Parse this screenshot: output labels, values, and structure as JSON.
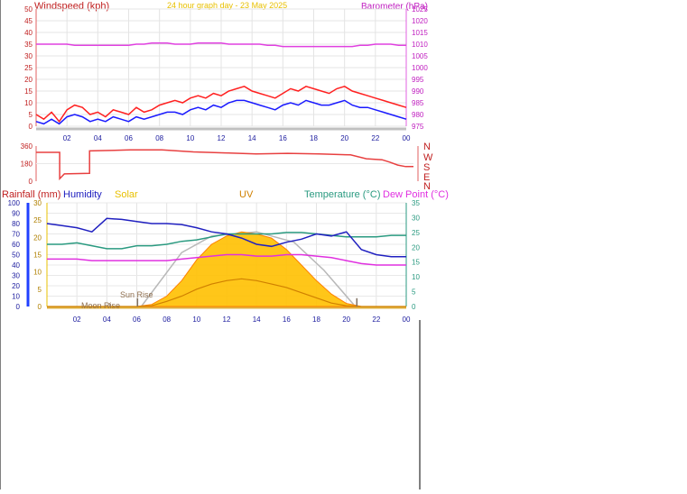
{
  "header": {
    "left_title": "Windspeed (kph)",
    "center_title": "24 hour graph day - 23 May 2025",
    "right_title": "Barometer (hPa)"
  },
  "legend": {
    "rainfall": "Rainfall (mm)",
    "humidity": "Humidity",
    "solar": "Solar",
    "uv": "UV",
    "temperature": "Temperature (°C)",
    "dew_point": "Dew Point (°C)"
  },
  "annotations": {
    "sun_rise": "Sun Rise",
    "moon_rise": "Moon Rise"
  },
  "compass": [
    "N",
    "W",
    "S",
    "E",
    "N"
  ],
  "colors": {
    "wind_gust": "#ff2020",
    "wind_avg": "#1a1aff",
    "barometer": "#e040e0",
    "direction": "#e84040",
    "humidity": "#2020c0",
    "temperature": "#2a9a80",
    "dew_point": "#e030e0",
    "solar_fill": "#ffc000",
    "solar_edge": "#ff8000",
    "uv": "#d08000",
    "rain_axis": "#2040ff",
    "axis_grey": "#c0c0c0",
    "x_label": "#2020a0",
    "title": "#c02020",
    "center_title": "#e8c000"
  },
  "chart_data": [
    {
      "type": "line",
      "title": "24 hour graph day - 23 May 2025",
      "ylabel": "Windspeed (kph)",
      "y2label": "Barometer (hPa)",
      "ylim": [
        0,
        50
      ],
      "y2lim": [
        975,
        1025
      ],
      "x_ticks": [
        "02",
        "04",
        "06",
        "08",
        "10",
        "12",
        "14",
        "16",
        "18",
        "20",
        "22",
        "00"
      ],
      "y_ticks": [
        0,
        5,
        10,
        15,
        20,
        25,
        30,
        35,
        40,
        45,
        50
      ],
      "y2_ticks": [
        975,
        980,
        985,
        990,
        995,
        1000,
        1005,
        1010,
        1015,
        1020,
        1025
      ],
      "x_hours": [
        0,
        0.5,
        1,
        1.5,
        2,
        2.5,
        3,
        3.5,
        4,
        4.5,
        5,
        5.5,
        6,
        6.5,
        7,
        7.5,
        8,
        8.5,
        9,
        9.5,
        10,
        10.5,
        11,
        11.5,
        12,
        12.5,
        13,
        13.5,
        14,
        14.5,
        15,
        15.5,
        16,
        16.5,
        17,
        17.5,
        18,
        18.5,
        19,
        19.5,
        20,
        20.5,
        21,
        21.5,
        22,
        22.5,
        23,
        23.5,
        24
      ],
      "series": [
        {
          "name": "Gust",
          "axis": "left",
          "values": [
            5,
            3,
            6,
            2,
            7,
            9,
            8,
            5,
            6,
            4,
            7,
            6,
            5,
            8,
            6,
            7,
            9,
            10,
            11,
            10,
            12,
            13,
            12,
            14,
            13,
            15,
            16,
            17,
            15,
            14,
            13,
            12,
            14,
            16,
            15,
            17,
            16,
            15,
            14,
            16,
            17,
            15,
            14,
            13,
            12,
            11,
            10,
            9,
            8
          ]
        },
        {
          "name": "Average",
          "axis": "left",
          "values": [
            2,
            1,
            3,
            1,
            4,
            5,
            4,
            2,
            3,
            2,
            4,
            3,
            2,
            4,
            3,
            4,
            5,
            6,
            6,
            5,
            7,
            8,
            7,
            9,
            8,
            10,
            11,
            11,
            10,
            9,
            8,
            7,
            9,
            10,
            9,
            11,
            10,
            9,
            9,
            10,
            11,
            9,
            8,
            8,
            7,
            6,
            5,
            4,
            3
          ]
        },
        {
          "name": "Barometer",
          "axis": "right",
          "values": [
            1010,
            1010,
            1010,
            1010,
            1010,
            1009.5,
            1009.5,
            1009.5,
            1009.5,
            1009.5,
            1009.5,
            1009.5,
            1009.5,
            1010,
            1010,
            1010.5,
            1010.5,
            1010.5,
            1010,
            1010,
            1010,
            1010.5,
            1010.5,
            1010.5,
            1010.5,
            1010,
            1010,
            1010,
            1010,
            1010,
            1009.5,
            1009.5,
            1009,
            1009,
            1009,
            1009,
            1009,
            1009,
            1009,
            1009,
            1009,
            1009,
            1009.5,
            1009.5,
            1010,
            1010,
            1010,
            1009.5,
            1009.5
          ]
        }
      ]
    },
    {
      "type": "line",
      "title": "",
      "ylabel": "",
      "ylim": [
        0,
        360
      ],
      "y_ticks": [
        0,
        180,
        360
      ],
      "right_labels": [
        "N",
        "W",
        "S",
        "E",
        "N"
      ],
      "series": [
        {
          "name": "",
          "points": [
            [
              0,
              295
            ],
            [
              1.5,
              295
            ],
            [
              1.5,
              25
            ],
            [
              1.8,
              75
            ],
            [
              3.4,
              80
            ],
            [
              3.4,
              310
            ],
            [
              6,
              320
            ],
            [
              8,
              320
            ],
            [
              10,
              300
            ],
            [
              12,
              290
            ],
            [
              14,
              280
            ],
            [
              16,
              285
            ],
            [
              18,
              280
            ],
            [
              20,
              270
            ],
            [
              21,
              230
            ],
            [
              22,
              220
            ],
            [
              22.5,
              195
            ],
            [
              23,
              165
            ],
            [
              23.5,
              150
            ],
            [
              24,
              150
            ]
          ]
        }
      ]
    },
    {
      "type": "line",
      "title": "",
      "ylabel_left": "Rainfall (mm)",
      "ylim_rain_percent": [
        0,
        100
      ],
      "ylim_uv": [
        0,
        30
      ],
      "ylim_temperature": [
        0,
        35
      ],
      "humidity_ticks": [
        0,
        10,
        20,
        30,
        40,
        50,
        60,
        70,
        80,
        90,
        100
      ],
      "uv_ticks": [
        0,
        5,
        10,
        15,
        20,
        25,
        30
      ],
      "temperature_ticks": [
        0,
        5,
        10,
        15,
        20,
        25,
        30,
        35
      ],
      "x_ticks": [
        "02",
        "04",
        "06",
        "08",
        "10",
        "12",
        "14",
        "16",
        "18",
        "20",
        "22",
        "00"
      ],
      "x_hours": [
        0,
        1,
        2,
        3,
        4,
        5,
        6,
        7,
        8,
        9,
        10,
        11,
        12,
        13,
        14,
        15,
        16,
        17,
        18,
        19,
        20,
        21,
        22,
        23,
        24
      ],
      "series": [
        {
          "name": "Humidity",
          "axis": "percent",
          "values": [
            80,
            78,
            76,
            72,
            85,
            84,
            82,
            80,
            80,
            79,
            76,
            72,
            70,
            66,
            60,
            58,
            62,
            65,
            70,
            68,
            72,
            55,
            50,
            48,
            48
          ]
        },
        {
          "name": "Temperature",
          "axis": "temperature",
          "values": [
            21,
            21,
            21.5,
            20.5,
            19.5,
            19.5,
            20.5,
            20.5,
            21,
            22,
            22.5,
            23.5,
            24.5,
            24.5,
            24.5,
            24.5,
            25,
            25,
            24.5,
            24,
            23.5,
            23.5,
            23.5,
            24,
            24
          ]
        },
        {
          "name": "Dew Point",
          "axis": "temperature",
          "values": [
            16,
            16,
            16,
            15.5,
            15.5,
            15.5,
            15.5,
            15.5,
            15.5,
            16,
            16.5,
            17,
            17.5,
            17.5,
            17,
            17,
            17.5,
            17.5,
            17,
            16.5,
            15.5,
            14.5,
            14,
            14,
            14
          ]
        },
        {
          "name": "Solar",
          "axis": "percent",
          "values": [
            0,
            0,
            0,
            0,
            0,
            0,
            0,
            2,
            10,
            25,
            45,
            60,
            68,
            72,
            70,
            66,
            55,
            40,
            25,
            12,
            3,
            0,
            0,
            0,
            0
          ]
        },
        {
          "name": "UV",
          "axis": "uv",
          "values": [
            0,
            0,
            0,
            0,
            0,
            0,
            0,
            0.2,
            1.5,
            3,
            5,
            6.5,
            7.5,
            8,
            7.5,
            6.5,
            5.5,
            4,
            2.5,
            1,
            0.2,
            0,
            0,
            0,
            0
          ]
        }
      ],
      "sun_rise_hour": 6.05,
      "sun_set_hour": 20.7,
      "moon_rise_hour": 4.2,
      "theoretical_solar_ends": [
        6.3,
        20.6
      ]
    }
  ]
}
